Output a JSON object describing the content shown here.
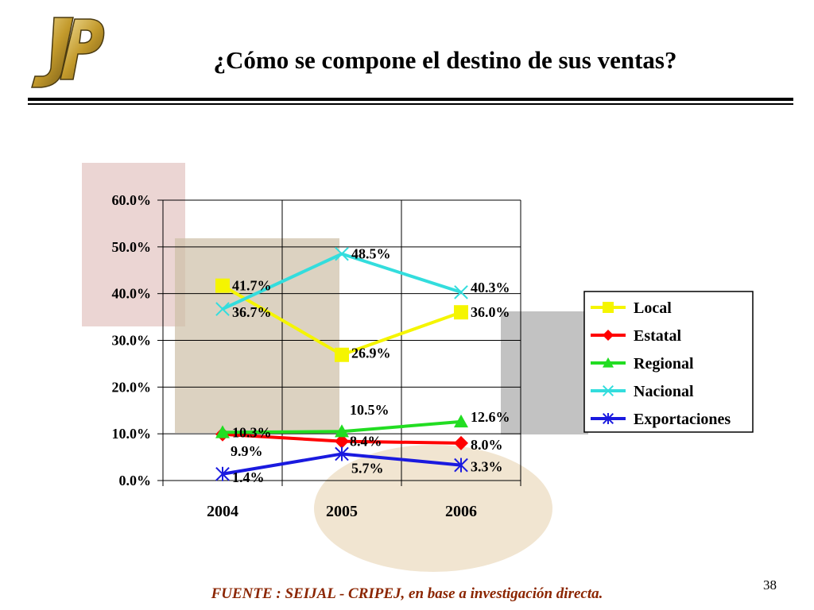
{
  "title": "¿Cómo se compone el destino de sus ventas?",
  "footer": "FUENTE :  SEIJAL - CRIPEJ,  en base a investigación directa.",
  "page_number": "38",
  "colors": {
    "Local": "#f5f500",
    "Estatal": "#ff0000",
    "Regional": "#22dd22",
    "Nacional": "#33dddd",
    "Exportaciones": "#1a1adf",
    "footer": "#8b2500"
  },
  "chart_data": {
    "type": "line",
    "x": [
      "2004",
      "2005",
      "2006"
    ],
    "ylim": [
      0,
      60
    ],
    "yticks": [
      "0.0%",
      "10.0%",
      "20.0%",
      "30.0%",
      "40.0%",
      "50.0%",
      "60.0%"
    ],
    "grid": true,
    "legend_position": "right",
    "series": [
      {
        "name": "Local",
        "marker": "square",
        "values": [
          41.7,
          26.9,
          36.0
        ],
        "labels": [
          "41.7%",
          "26.9%",
          "36.0%"
        ]
      },
      {
        "name": "Estatal",
        "marker": "diamond",
        "values": [
          9.9,
          8.4,
          8.0
        ],
        "labels": [
          "9.9%",
          "8.4%",
          "8.0%"
        ]
      },
      {
        "name": "Regional",
        "marker": "triangle",
        "values": [
          10.3,
          10.5,
          12.6
        ],
        "labels": [
          "10.3%",
          "10.5%",
          "12.6%"
        ]
      },
      {
        "name": "Nacional",
        "marker": "x",
        "values": [
          36.7,
          48.5,
          40.3
        ],
        "labels": [
          "36.7%",
          "48.5%",
          "40.3%"
        ]
      },
      {
        "name": "Exportaciones",
        "marker": "star",
        "values": [
          1.4,
          5.7,
          3.3
        ],
        "labels": [
          "1.4%",
          "5.7%",
          "3.3%"
        ]
      }
    ]
  }
}
